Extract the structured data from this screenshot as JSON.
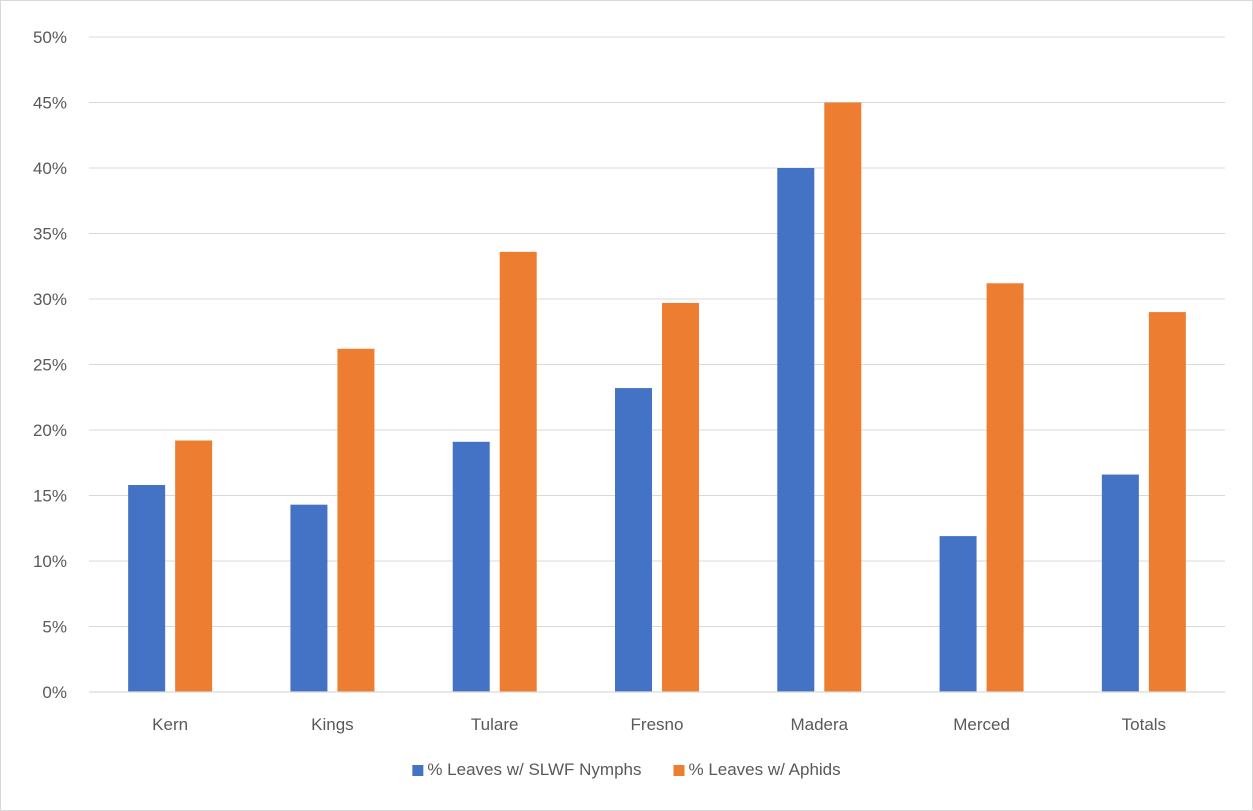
{
  "chart_data": {
    "type": "bar",
    "title": "",
    "xlabel": "",
    "ylabel": "",
    "categories": [
      "Kern",
      "Kings",
      "Tulare",
      "Fresno",
      "Madera",
      "Merced",
      "Totals"
    ],
    "series": [
      {
        "name": "% Leaves w/ SLWF Nymphs",
        "color": "#4472c4",
        "values": [
          15.8,
          14.3,
          19.1,
          23.2,
          40.0,
          11.9,
          16.6
        ]
      },
      {
        "name": "% Leaves w/ Aphids",
        "color": "#ed7d31",
        "values": [
          19.2,
          26.2,
          33.6,
          29.7,
          45.0,
          31.2,
          29.0
        ]
      }
    ],
    "ylim": [
      0,
      50
    ],
    "yticks": [
      "0%",
      "5%",
      "10%",
      "15%",
      "20%",
      "25%",
      "30%",
      "35%",
      "40%",
      "45%",
      "50%"
    ],
    "grid": true,
    "legend_position": "bottom"
  }
}
